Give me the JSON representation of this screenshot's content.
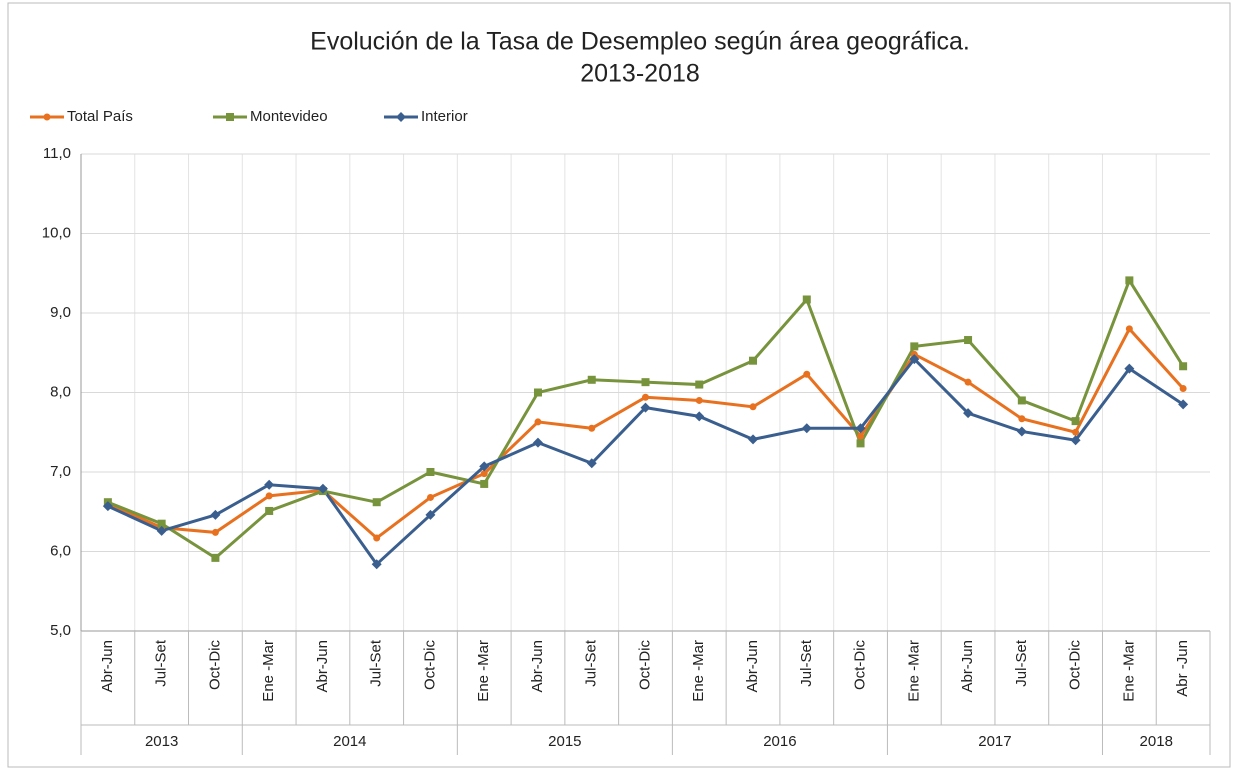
{
  "chart_data": {
    "type": "line",
    "title": "Evolución de la Tasa de Desempleo según área geográfica.",
    "subtitle": "2013-2018",
    "category_groups": [
      {
        "name": "2013",
        "categories": [
          "Abr-Jun",
          "Jul-Set",
          "Oct-Dic"
        ]
      },
      {
        "name": "2014",
        "categories": [
          "Ene -Mar",
          "Abr-Jun",
          "Jul-Set",
          "Oct-Dic"
        ]
      },
      {
        "name": "2015",
        "categories": [
          "Ene -Mar",
          "Abr-Jun",
          "Jul-Set",
          "Oct-Dic"
        ]
      },
      {
        "name": "2016",
        "categories": [
          "Ene -Mar",
          "Abr-Jun",
          "Jul-Set",
          "Oct-Dic"
        ]
      },
      {
        "name": "2017",
        "categories": [
          "Ene -Mar",
          "Abr-Jun",
          "Jul-Set",
          "Oct-Dic"
        ]
      },
      {
        "name": "2018",
        "categories": [
          "Ene -Mar",
          "Abr -Jun"
        ]
      }
    ],
    "series": [
      {
        "name": "Total País",
        "color": "#e8711f",
        "marker": "circle",
        "values": [
          6.6,
          6.3,
          6.24,
          6.7,
          6.77,
          6.17,
          6.68,
          6.98,
          7.63,
          7.55,
          7.94,
          7.9,
          7.82,
          8.23,
          7.45,
          8.48,
          8.13,
          7.67,
          7.5,
          8.8,
          8.05
        ]
      },
      {
        "name": "Montevideo",
        "color": "#77933c",
        "marker": "square",
        "values": [
          6.62,
          6.35,
          5.92,
          6.51,
          6.76,
          6.62,
          7.0,
          6.85,
          8.0,
          8.16,
          8.13,
          8.1,
          8.4,
          9.17,
          7.36,
          8.58,
          8.66,
          7.9,
          7.64,
          9.41,
          8.33
        ]
      },
      {
        "name": "Interior",
        "color": "#3a5f8f",
        "marker": "diamond",
        "values": [
          6.57,
          6.26,
          6.46,
          6.84,
          6.79,
          5.84,
          6.46,
          7.07,
          7.37,
          7.11,
          7.81,
          7.7,
          7.41,
          7.55,
          7.55,
          8.42,
          7.74,
          7.51,
          7.4,
          8.3,
          7.85
        ]
      }
    ],
    "ylim": [
      5,
      11
    ],
    "yticks": [
      {
        "value": 5,
        "label": "5,0"
      },
      {
        "value": 6,
        "label": "6,0"
      },
      {
        "value": 7,
        "label": "7,0"
      },
      {
        "value": 8,
        "label": "8,0"
      },
      {
        "value": 9,
        "label": "9,0"
      },
      {
        "value": 10,
        "label": "10,0"
      },
      {
        "value": 11,
        "label": "11,0"
      }
    ],
    "grid": true,
    "legend": "top-left"
  }
}
